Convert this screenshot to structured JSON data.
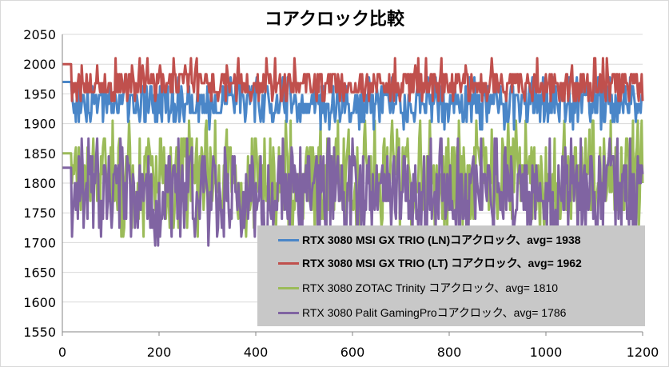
{
  "chart_data": {
    "type": "line",
    "title": "コアクロック比較",
    "xlim": [
      0,
      1200
    ],
    "ylim": [
      1550,
      2050
    ],
    "xticks": [
      "0",
      "200",
      "400",
      "600",
      "800",
      "1000",
      "1200"
    ],
    "yticks": [
      "2050",
      "2000",
      "1950",
      "1900",
      "1850",
      "1800",
      "1750",
      "1700",
      "1650",
      "1600",
      "1550"
    ],
    "grid": "horizontal",
    "legend_position": "bottom-right",
    "series": [
      {
        "name": "RTX 3080 MSI GX TRIO (LN)コアクロック、avg= 1938",
        "avg": 1938,
        "color": "#4a86c8",
        "range": [
          1890,
          1980
        ],
        "bold": true
      },
      {
        "name": "RTX 3080 MSI GX TRIO (LT) コアクロック、avg= 1962",
        "avg": 1962,
        "color": "#c0504d",
        "range": [
          1935,
          2010
        ],
        "bold": true
      },
      {
        "name": "RTX 3080 ZOTAC Trinity コアクロック、avg= 1810",
        "avg": 1810,
        "color": "#9bbb59",
        "range": [
          1710,
          1905
        ],
        "bold": false
      },
      {
        "name": "RTX 3080 Palit GamingProコアクロック、avg= 1786",
        "avg": 1786,
        "color": "#8064a2",
        "range": [
          1695,
          1875
        ],
        "bold": false
      }
    ]
  }
}
